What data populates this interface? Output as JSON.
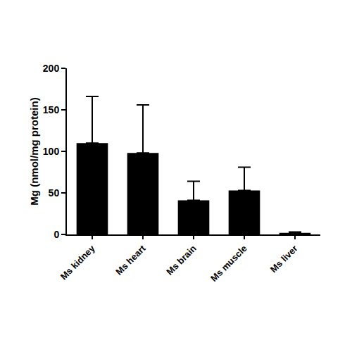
{
  "chart_data": {
    "type": "bar",
    "ylabel": "Mg (nmol/mg protein)",
    "categories": [
      "Ms kidney",
      "Ms heart",
      "Ms brain",
      "Ms muscle",
      "Ms liver"
    ],
    "values": [
      110,
      98,
      41,
      53,
      2
    ],
    "errors": [
      56,
      58,
      23,
      28,
      1
    ],
    "color": "#000000",
    "ylim": [
      0,
      200
    ],
    "yticks": [
      0,
      50,
      100,
      150,
      200
    ],
    "grid": false
  }
}
